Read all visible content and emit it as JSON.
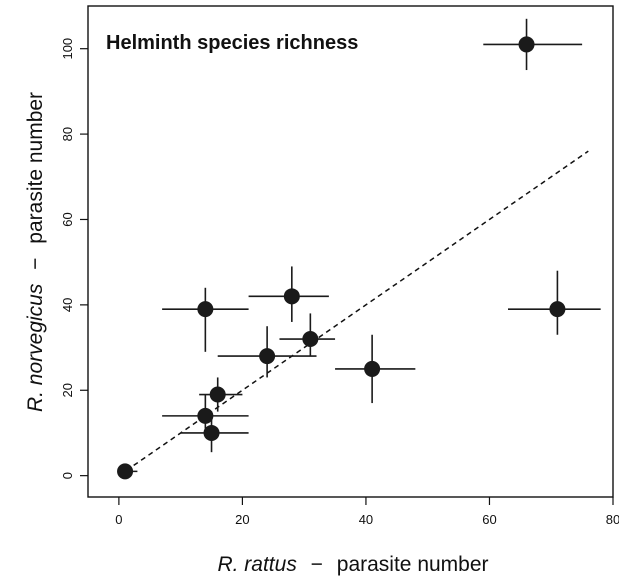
{
  "chart_data": {
    "type": "scatter",
    "title": "Helminth species richness",
    "xlabel": {
      "species": "R. rattus",
      "dash": "−",
      "rest": "parasite number"
    },
    "ylabel": {
      "species": "R. norvegicus",
      "dash": "−",
      "rest": "parasite number"
    },
    "xlim": [
      -5,
      80
    ],
    "ylim": [
      -5,
      110
    ],
    "xticks": [
      0,
      20,
      40,
      60,
      80
    ],
    "yticks": [
      0,
      20,
      40,
      60,
      80,
      100
    ],
    "grid": false,
    "points": [
      {
        "x": 1,
        "y": 1,
        "xerr": [
          0,
          3
        ],
        "yerr": [
          0,
          2
        ]
      },
      {
        "x": 14,
        "y": 14,
        "xerr": [
          7,
          21
        ],
        "yerr": [
          11,
          19
        ]
      },
      {
        "x": 15,
        "y": 10,
        "xerr": [
          10,
          21
        ],
        "yerr": [
          5.5,
          15
        ]
      },
      {
        "x": 16,
        "y": 19,
        "xerr": [
          13,
          20
        ],
        "yerr": [
          15,
          23
        ]
      },
      {
        "x": 14,
        "y": 39,
        "xerr": [
          7,
          21
        ],
        "yerr": [
          29,
          44
        ]
      },
      {
        "x": 24,
        "y": 28,
        "xerr": [
          16,
          32
        ],
        "yerr": [
          23,
          35
        ]
      },
      {
        "x": 28,
        "y": 42,
        "xerr": [
          21,
          34
        ],
        "yerr": [
          36,
          49
        ]
      },
      {
        "x": 31,
        "y": 32,
        "xerr": [
          26,
          35
        ],
        "yerr": [
          28,
          38
        ]
      },
      {
        "x": 41,
        "y": 25,
        "xerr": [
          35,
          48
        ],
        "yerr": [
          17,
          33
        ]
      },
      {
        "x": 66,
        "y": 101,
        "xerr": [
          59,
          75
        ],
        "yerr": [
          95,
          107
        ]
      },
      {
        "x": 71,
        "y": 39,
        "xerr": [
          63,
          78
        ],
        "yerr": [
          33,
          48
        ]
      }
    ],
    "trend_line": {
      "x": [
        0,
        76
      ],
      "y": [
        0,
        76
      ],
      "style": "dashed"
    },
    "marker_color": "#1a1a1a"
  }
}
